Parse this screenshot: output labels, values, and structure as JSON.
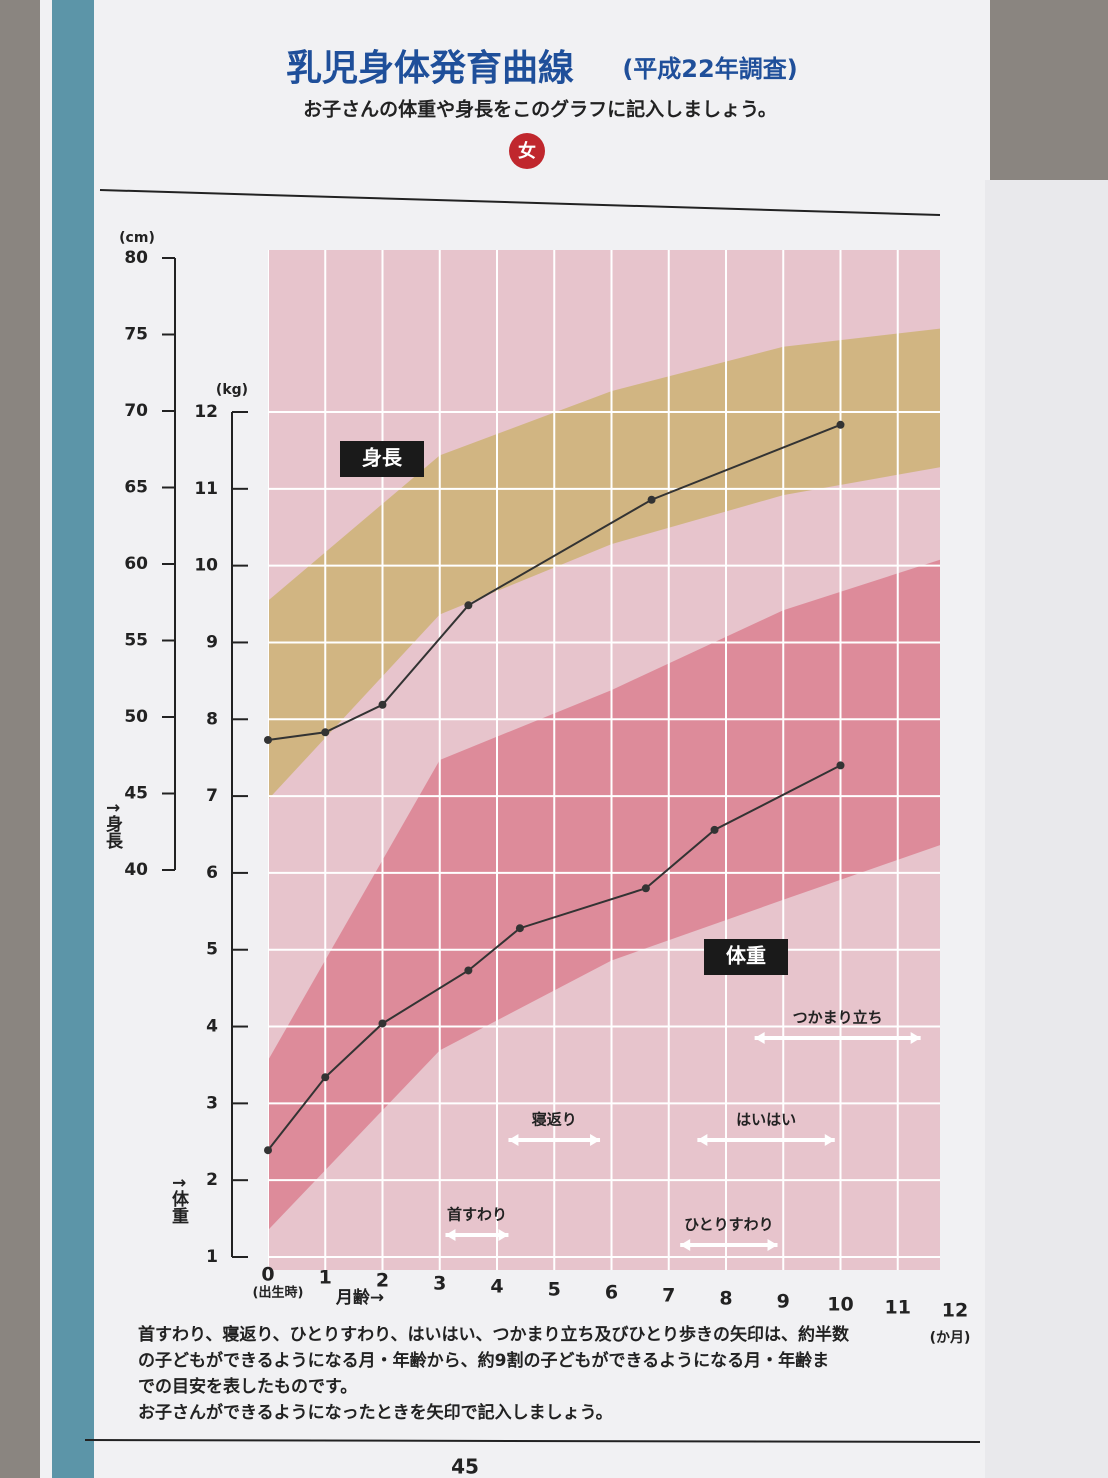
{
  "chart_data": {
    "type": "line",
    "title": "乳児身体発育曲線",
    "title_note": "(平成22年調査)",
    "subtitle": "お子さんの体重や身長をこのグラフに記入しましょう。",
    "badge": "女",
    "xlabel": "月齢→",
    "x_unit": "(か月)",
    "x_origin_note": "(出生時)",
    "xlim": [
      0,
      12
    ],
    "xticks": [
      0,
      1,
      2,
      3,
      4,
      5,
      6,
      7,
      8,
      9,
      10,
      11,
      12
    ],
    "ylabel": "↑身長",
    "y_unit": "(cm)",
    "ylim": [
      40,
      80
    ],
    "yticks": [
      40,
      45,
      50,
      55,
      60,
      65,
      70,
      75,
      80
    ],
    "y2label": "↑体重",
    "y2_unit": "(kg)",
    "y2lim": [
      1,
      12
    ],
    "y2ticks": [
      1,
      2,
      3,
      4,
      5,
      6,
      7,
      8,
      9,
      10,
      11,
      12
    ],
    "grid": true,
    "series": [
      {
        "name": "身長",
        "axis": "y",
        "color": "#333333",
        "band_color": "#c9b06a",
        "x": [
          0,
          1,
          2,
          3.5,
          6.7,
          10
        ],
        "values": [
          48.5,
          49,
          50.8,
          57.3,
          64.2,
          69.1
        ],
        "band_x": [
          0,
          3,
          6,
          9,
          12
        ],
        "band_upper": [
          57.6,
          67.1,
          71.3,
          74.2,
          75.5
        ],
        "band_lower": [
          44.6,
          56.7,
          61.3,
          64.5,
          66.5
        ]
      },
      {
        "name": "体重",
        "axis": "y2",
        "color": "#333333",
        "band_color": "#d9788a",
        "x": [
          0,
          1,
          2,
          3.5,
          4.4,
          6.6,
          7.8,
          10
        ],
        "values": [
          2.39,
          3.34,
          4.04,
          4.73,
          5.28,
          5.8,
          6.56,
          7.4
        ],
        "band_x": [
          0,
          3,
          6,
          9,
          12
        ],
        "band_upper": [
          3.56,
          7.47,
          8.38,
          9.42,
          10.14
        ],
        "band_lower": [
          1.35,
          3.69,
          4.86,
          5.65,
          6.43
        ]
      }
    ],
    "milestones": [
      {
        "label": "首すわり",
        "from": 3.1,
        "to": 4.2
      },
      {
        "label": "寝返り",
        "from": 4.2,
        "to": 5.8
      },
      {
        "label": "ひとりすわり",
        "from": 7.2,
        "to": 8.9
      },
      {
        "label": "はいはい",
        "from": 7.5,
        "to": 9.9
      },
      {
        "label": "つかまり立ち",
        "from": 8.5,
        "to": 11.4
      }
    ],
    "footnote": [
      "首すわり、寝返り、ひとりすわり、はいはい、つかまり立ち及びひとり歩きの矢印は、約半数",
      "の子どもができるようになる月・年齢から、約9割の子どもができるようになる月・年齢ま",
      "での目安を表したものです。",
      "お子さんができるようになったときを矢印で記入しましょう。"
    ],
    "page_number": "45"
  }
}
